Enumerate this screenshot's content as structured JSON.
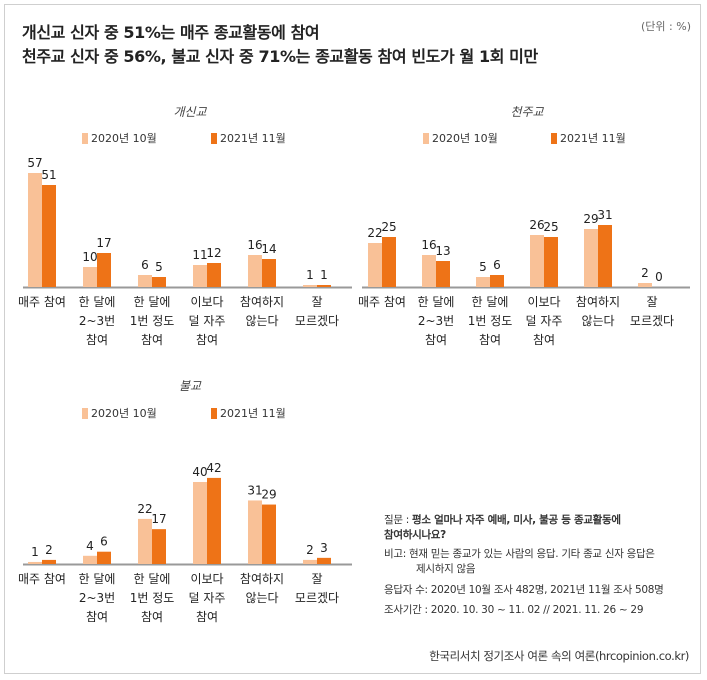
{
  "title_line1": "개신교 신자 중 51%는 매주 종교활동에 참여",
  "title_line2": "천주교 신자 중 56%, 불교 신자 중 71%는 종교활동 참여 빈도가 월 1회 미만",
  "unit": "(단위 : %)",
  "colors": {
    "series2020": "#f9c197",
    "series2021": "#ee7317",
    "axis": "#999999"
  },
  "chart_data": [
    {
      "type": "bar",
      "title": "개신교",
      "categories": [
        [
          "매주 참여"
        ],
        [
          "한 달에",
          "2~3번",
          "참여"
        ],
        [
          "한 달에",
          "1번 정도",
          "참여"
        ],
        [
          "이보다",
          "덜 자주",
          "참여"
        ],
        [
          "참여하지",
          "않는다"
        ],
        [
          "잘",
          "모르겠다"
        ]
      ],
      "series": [
        {
          "name": "2020년 10월",
          "values": [
            57,
            10,
            6,
            11,
            16,
            1
          ]
        },
        {
          "name": "2021년 11월",
          "values": [
            51,
            17,
            5,
            12,
            14,
            1
          ]
        }
      ],
      "ylim": [
        0,
        60
      ]
    },
    {
      "type": "bar",
      "title": "천주교",
      "categories": [
        [
          "매주 참여"
        ],
        [
          "한 달에",
          "2~3번",
          "참여"
        ],
        [
          "한 달에",
          "1번 정도",
          "참여"
        ],
        [
          "이보다",
          "덜 자주",
          "참여"
        ],
        [
          "참여하지",
          "않는다"
        ],
        [
          "잘",
          "모르겠다"
        ]
      ],
      "series": [
        {
          "name": "2020년 10월",
          "values": [
            22,
            16,
            5,
            26,
            29,
            2
          ]
        },
        {
          "name": "2021년 11월",
          "values": [
            25,
            13,
            6,
            25,
            31,
            0
          ]
        }
      ],
      "ylim": [
        0,
        60
      ]
    },
    {
      "type": "bar",
      "title": "불교",
      "categories": [
        [
          "매주 참여"
        ],
        [
          "한 달에",
          "2~3번",
          "참여"
        ],
        [
          "한 달에",
          "1번 정도",
          "참여"
        ],
        [
          "이보다",
          "덜 자주",
          "참여"
        ],
        [
          "참여하지",
          "않는다"
        ],
        [
          "잘",
          "모르겠다"
        ]
      ],
      "series": [
        {
          "name": "2020년 10월",
          "values": [
            1,
            4,
            22,
            40,
            31,
            2
          ]
        },
        {
          "name": "2021년 11월",
          "values": [
            2,
            6,
            17,
            42,
            29,
            3
          ]
        }
      ],
      "ylim": [
        0,
        60
      ]
    }
  ],
  "notes": {
    "q_label": "질문 :",
    "q_line1": "평소 얼마나 자주 예배, 미사, 불공 등 종교활동에",
    "q_line2": "참여하시나요?",
    "remark_label": "비고:",
    "remark_line1": "현재 믿는 종교가 있는 사람의 응답. 기타 종교 신자 응답은",
    "remark_line2": "제시하지 않음",
    "respondents": "응답자 수: 2020년 10월 조사 482명, 2021년 11월 조사 508명",
    "period": "조사기간 : 2020. 10. 30 ~ 11. 02 // 2021. 11. 26 ~ 29"
  },
  "source": "한국리서치 정기조사 여론 속의 여론(hrcopinion.co.kr)"
}
